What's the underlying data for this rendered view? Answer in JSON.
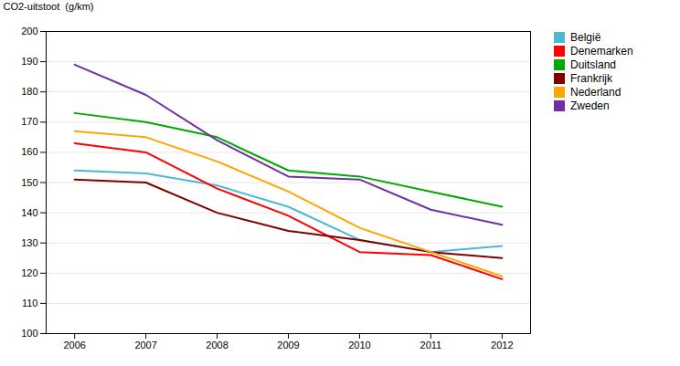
{
  "chart_data": {
    "type": "line",
    "x": [
      2006,
      2007,
      2008,
      2009,
      2010,
      2011,
      2012
    ],
    "series": [
      {
        "name": "België",
        "color": "#4db8d4",
        "values": [
          154,
          153,
          149,
          142,
          131,
          127,
          129
        ]
      },
      {
        "name": "Denemarken",
        "color": "#FF0000",
        "values": [
          163,
          160,
          148,
          139,
          127,
          126,
          118
        ]
      },
      {
        "name": "Duitsland",
        "color": "#00AA00",
        "values": [
          173,
          170,
          165,
          154,
          152,
          147,
          142
        ]
      },
      {
        "name": "Frankrijk",
        "color": "#800000",
        "values": [
          151,
          150,
          140,
          134,
          131,
          127,
          125
        ]
      },
      {
        "name": "Nederland",
        "color": "#FFA500",
        "values": [
          167,
          165,
          157,
          147,
          135,
          127,
          119
        ]
      },
      {
        "name": "Zweden",
        "color": "#7030A0",
        "values": [
          189,
          179,
          164,
          152,
          151,
          141,
          136
        ]
      }
    ],
    "ylabel": "CO2-uitstoot  (g/km)",
    "xlim": [
      2005.6,
      2012.4
    ],
    "xticks": [
      2006,
      2007,
      2008,
      2009,
      2010,
      2011,
      2012
    ],
    "ylim": [
      100,
      200
    ],
    "yticks": [
      100,
      110,
      120,
      130,
      140,
      150,
      160,
      170,
      180,
      190,
      200
    ],
    "grid": true,
    "legend": "right"
  }
}
